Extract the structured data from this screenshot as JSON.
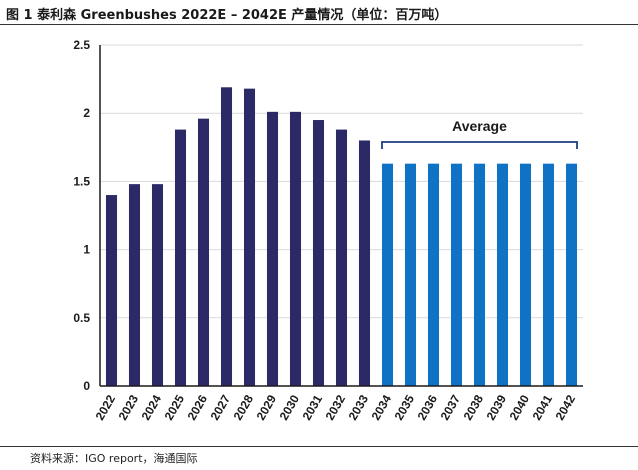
{
  "figure": {
    "title": "图 1  泰利森 Greenbushes 2022E – 2042E 产量情况（单位：百万吨）",
    "source": "资料来源：IGO report，海通国际"
  },
  "chart_data": {
    "type": "bar",
    "categories": [
      "2022",
      "2023",
      "2024",
      "2025",
      "2026",
      "2027",
      "2028",
      "2029",
      "2030",
      "2031",
      "2032",
      "2033",
      "2034",
      "2035",
      "2036",
      "2037",
      "2038",
      "2039",
      "2040",
      "2041",
      "2042"
    ],
    "values": [
      1.4,
      1.48,
      1.48,
      1.88,
      1.96,
      2.19,
      2.18,
      2.01,
      2.01,
      1.95,
      1.88,
      1.8,
      1.63,
      1.63,
      1.63,
      1.63,
      1.63,
      1.63,
      1.63,
      1.63,
      1.63
    ],
    "ylim": [
      0,
      2.5
    ],
    "yticks": [
      "0",
      "0.5",
      "1",
      "1.5",
      "2",
      "2.5"
    ],
    "grid": true,
    "legend": "none",
    "colors": {
      "history": "#2b2a66",
      "average": "#0f72c4"
    },
    "average_start_index": 12,
    "annotation": {
      "text": "Average",
      "from": "2034",
      "to": "2042"
    }
  }
}
